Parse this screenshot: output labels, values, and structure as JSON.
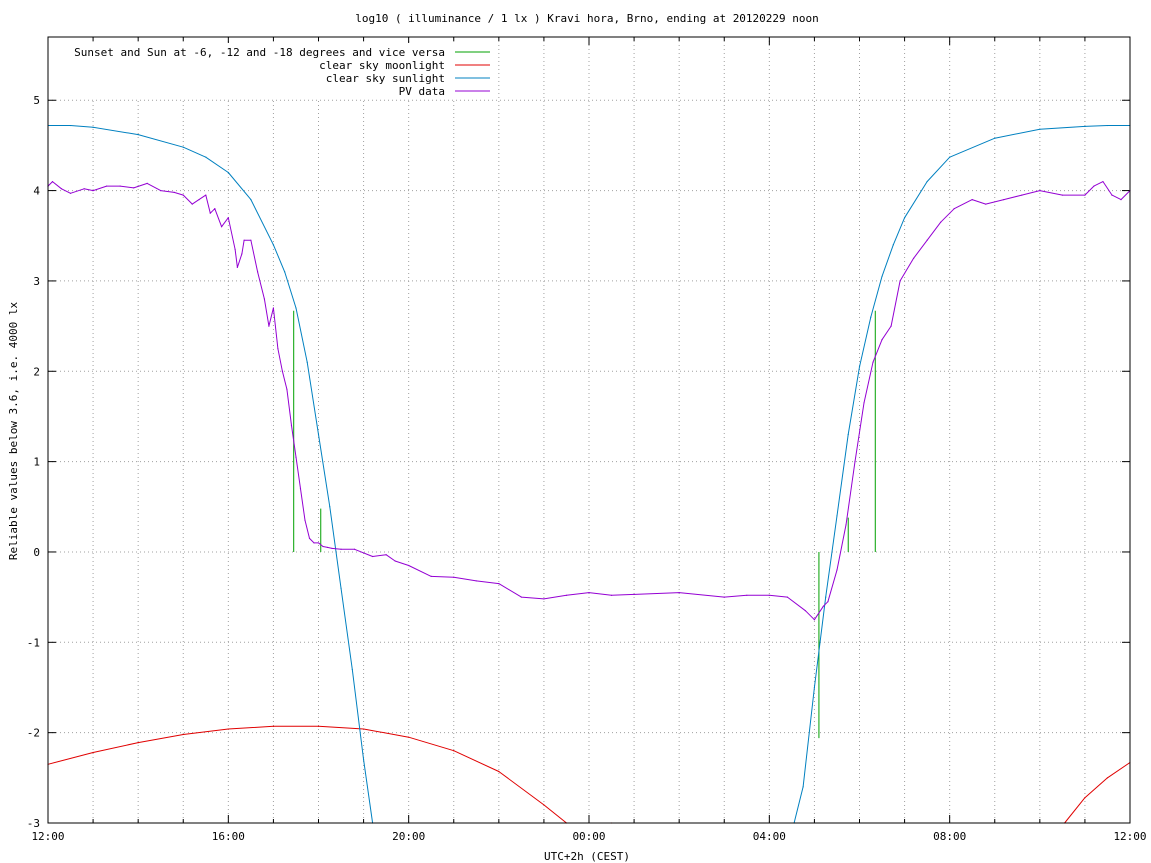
{
  "chart_data": {
    "type": "line",
    "title": "log10 ( illuminance / 1 lx ) Kravi hora, Brno, ending at 20120229 noon",
    "xlabel": "UTC+2h (CEST)",
    "ylabel": "Reliable values below 3.6, i.e. 4000 lx",
    "xlim": [
      0,
      24
    ],
    "ylim": [
      -3,
      5.7
    ],
    "x_ticks": [
      {
        "value": 0,
        "label": "12:00"
      },
      {
        "value": 4,
        "label": "16:00"
      },
      {
        "value": 8,
        "label": "20:00"
      },
      {
        "value": 12,
        "label": "00:00"
      },
      {
        "value": 16,
        "label": "04:00"
      },
      {
        "value": 20,
        "label": "08:00"
      },
      {
        "value": 24,
        "label": "12:00"
      }
    ],
    "y_ticks": [
      {
        "value": -3,
        "label": "-3"
      },
      {
        "value": -2,
        "label": "-2"
      },
      {
        "value": -1,
        "label": "-1"
      },
      {
        "value": 0,
        "label": "0"
      },
      {
        "value": 1,
        "label": "1"
      },
      {
        "value": 2,
        "label": "2"
      },
      {
        "value": 3,
        "label": "3"
      },
      {
        "value": 4,
        "label": "4"
      },
      {
        "value": 5,
        "label": "5"
      }
    ],
    "grid": true,
    "legend_position": "top-left",
    "series": [
      {
        "name": "Sunset and Sun at -6, -12 and -18 degrees and vice versa",
        "color": "#00a000",
        "kind": "impulses",
        "points": [
          [
            5.45,
            2.67
          ],
          [
            6.05,
            0.48
          ],
          [
            6.65,
            0
          ],
          [
            7.28,
            0
          ],
          [
            16.45,
            0
          ],
          [
            17.1,
            -2.06
          ],
          [
            17.75,
            0.38
          ],
          [
            18.35,
            2.67
          ]
        ]
      },
      {
        "name": "clear sky moonlight",
        "color": "#e00000",
        "x": [
          0,
          1,
          2,
          3,
          4,
          5,
          6,
          7,
          8,
          9,
          10,
          11,
          11.5,
          12.5,
          22.55,
          23,
          23.5,
          24
        ],
        "y": [
          -2.35,
          -2.22,
          -2.11,
          -2.02,
          -1.96,
          -1.93,
          -1.93,
          -1.96,
          -2.05,
          -2.2,
          -2.43,
          -2.8,
          -3.0,
          -3.0,
          -3.0,
          -2.72,
          -2.5,
          -2.33
        ]
      },
      {
        "name": "clear sky sunlight",
        "color": "#0080c0",
        "x": [
          0,
          0.5,
          1,
          2,
          3,
          3.5,
          4,
          4.5,
          5,
          5.25,
          5.5,
          5.75,
          6,
          6.25,
          6.5,
          6.75,
          7,
          7.2,
          16.55,
          16.75,
          17,
          17.25,
          17.5,
          17.75,
          18,
          18.25,
          18.5,
          18.75,
          19,
          19.5,
          20,
          21,
          22,
          23,
          23.5,
          24
        ],
        "y": [
          4.72,
          4.72,
          4.7,
          4.62,
          4.48,
          4.37,
          4.2,
          3.9,
          3.4,
          3.1,
          2.7,
          2.1,
          1.3,
          0.5,
          -0.4,
          -1.3,
          -2.3,
          -3.0,
          -3.0,
          -2.6,
          -1.5,
          -0.5,
          0.4,
          1.3,
          2.05,
          2.6,
          3.05,
          3.4,
          3.7,
          4.1,
          4.37,
          4.58,
          4.68,
          4.71,
          4.72,
          4.72
        ]
      },
      {
        "name": "PV data",
        "color": "#9400d3",
        "x": [
          0,
          0.1,
          0.3,
          0.5,
          0.8,
          1,
          1.3,
          1.6,
          1.9,
          2.2,
          2.5,
          2.8,
          3,
          3.2,
          3.35,
          3.5,
          3.6,
          3.7,
          3.85,
          4.0,
          4.15,
          4.2,
          4.3,
          4.35,
          4.5,
          4.65,
          4.8,
          4.9,
          5.0,
          5.1,
          5.2,
          5.3,
          5.4,
          5.5,
          5.6,
          5.7,
          5.8,
          5.9,
          6.0,
          6.1,
          6.2,
          6.3,
          6.5,
          6.8,
          7.2,
          7.5,
          7.7,
          8.0,
          8.5,
          9.0,
          9.5,
          10.0,
          10.5,
          11.0,
          11.5,
          12.0,
          12.5,
          13.0,
          14.0,
          15.0,
          15.5,
          16.0,
          16.4,
          16.8,
          17.0,
          17.2,
          17.3,
          17.5,
          17.7,
          17.9,
          18.1,
          18.3,
          18.5,
          18.7,
          18.9,
          19.2,
          19.5,
          19.8,
          20.1,
          20.5,
          20.8,
          21.2,
          21.6,
          22.0,
          22.5,
          23.0,
          23.2,
          23.4,
          23.6,
          23.8,
          24.0
        ],
        "y": [
          4.05,
          4.1,
          4.02,
          3.97,
          4.02,
          4.0,
          4.05,
          4.05,
          4.03,
          4.08,
          4.0,
          3.98,
          3.95,
          3.85,
          3.9,
          3.95,
          3.75,
          3.8,
          3.6,
          3.7,
          3.35,
          3.15,
          3.3,
          3.45,
          3.45,
          3.1,
          2.8,
          2.5,
          2.7,
          2.25,
          2.0,
          1.8,
          1.4,
          1.05,
          0.7,
          0.35,
          0.15,
          0.1,
          0.1,
          0.06,
          0.05,
          0.04,
          0.03,
          0.03,
          -0.05,
          -0.03,
          -0.1,
          -0.15,
          -0.27,
          -0.28,
          -0.32,
          -0.35,
          -0.5,
          -0.52,
          -0.48,
          -0.45,
          -0.48,
          -0.47,
          -0.45,
          -0.5,
          -0.48,
          -0.48,
          -0.5,
          -0.65,
          -0.75,
          -0.6,
          -0.55,
          -0.2,
          0.3,
          1.0,
          1.65,
          2.1,
          2.35,
          2.5,
          3.0,
          3.25,
          3.45,
          3.65,
          3.8,
          3.9,
          3.85,
          3.9,
          3.95,
          4.0,
          3.95,
          3.95,
          4.05,
          4.1,
          3.95,
          3.9,
          4.0
        ]
      }
    ]
  }
}
